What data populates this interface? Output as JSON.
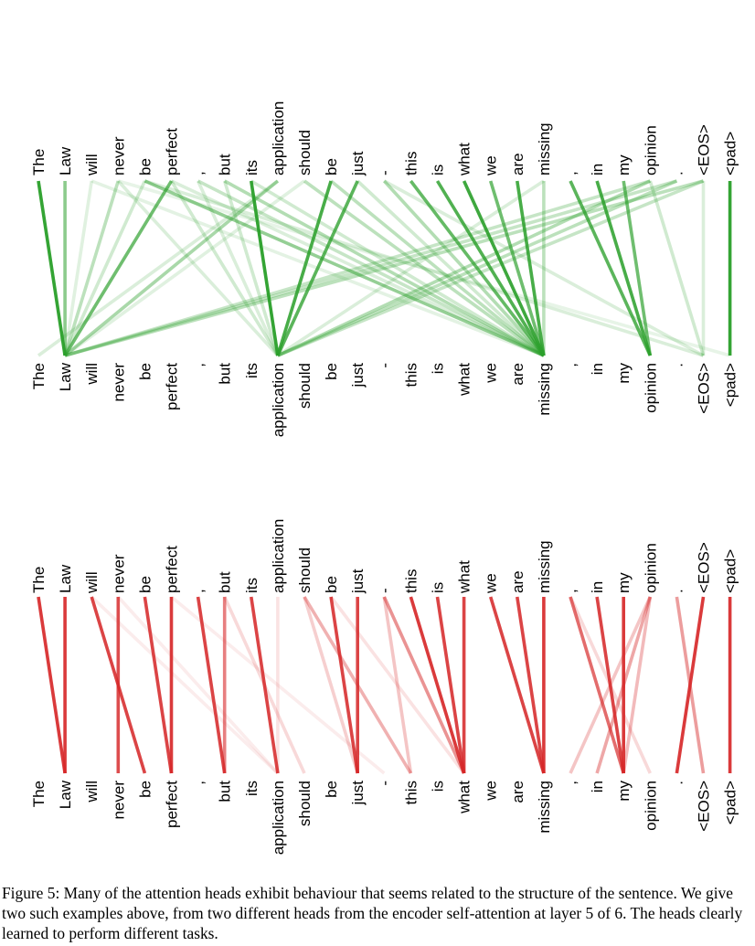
{
  "tokens": [
    "The",
    "Law",
    "will",
    "never",
    "be",
    "perfect",
    ",",
    "but",
    "its",
    "application",
    "should",
    "be",
    "just",
    "-",
    "this",
    "is",
    "what",
    "we",
    "are",
    "missing",
    ",",
    "in",
    "my",
    "opinion",
    ".",
    "<EOS>",
    "<pad>"
  ],
  "heads": [
    {
      "name": "green-head",
      "color": "#2ca02c",
      "edges": [
        [
          0,
          1,
          1.0
        ],
        [
          1,
          1,
          0.55
        ],
        [
          2,
          1,
          0.12
        ],
        [
          2,
          19,
          0.1
        ],
        [
          3,
          1,
          0.3
        ],
        [
          3,
          9,
          0.15
        ],
        [
          3,
          26,
          0.08
        ],
        [
          4,
          19,
          0.5
        ],
        [
          4,
          1,
          0.2
        ],
        [
          4,
          25,
          0.15
        ],
        [
          5,
          1,
          0.7
        ],
        [
          5,
          19,
          0.15
        ],
        [
          5,
          9,
          0.2
        ],
        [
          6,
          19,
          0.25
        ],
        [
          6,
          9,
          0.15
        ],
        [
          7,
          19,
          0.35
        ],
        [
          7,
          9,
          0.2
        ],
        [
          8,
          9,
          1.0
        ],
        [
          8,
          19,
          0.2
        ],
        [
          9,
          1,
          0.4
        ],
        [
          9,
          0,
          0.15
        ],
        [
          10,
          19,
          0.3
        ],
        [
          10,
          1,
          0.12
        ],
        [
          11,
          9,
          0.9
        ],
        [
          11,
          19,
          0.3
        ],
        [
          12,
          9,
          0.8
        ],
        [
          12,
          19,
          0.2
        ],
        [
          13,
          19,
          0.35
        ],
        [
          13,
          25,
          0.15
        ],
        [
          14,
          19,
          0.75
        ],
        [
          15,
          19,
          0.85
        ],
        [
          16,
          19,
          0.95
        ],
        [
          17,
          19,
          0.7
        ],
        [
          18,
          19,
          0.9
        ],
        [
          19,
          19,
          0.3
        ],
        [
          19,
          9,
          0.15
        ],
        [
          20,
          23,
          0.8
        ],
        [
          21,
          23,
          0.9
        ],
        [
          22,
          23,
          0.7
        ],
        [
          23,
          9,
          0.35
        ],
        [
          23,
          1,
          0.25
        ],
        [
          23,
          25,
          0.2
        ],
        [
          24,
          9,
          0.3
        ],
        [
          24,
          1,
          0.25
        ],
        [
          25,
          1,
          0.3
        ],
        [
          25,
          9,
          0.25
        ],
        [
          25,
          25,
          0.15
        ],
        [
          26,
          26,
          1.0
        ]
      ]
    },
    {
      "name": "red-head",
      "color": "#d62728",
      "edges": [
        [
          0,
          1,
          0.95
        ],
        [
          1,
          1,
          0.95
        ],
        [
          2,
          4,
          0.9
        ],
        [
          2,
          9,
          0.05
        ],
        [
          3,
          3,
          0.85
        ],
        [
          3,
          9,
          0.05
        ],
        [
          4,
          5,
          0.9
        ],
        [
          5,
          5,
          0.95
        ],
        [
          6,
          7,
          0.9
        ],
        [
          7,
          7,
          0.6
        ],
        [
          7,
          10,
          0.15
        ],
        [
          8,
          9,
          0.9
        ],
        [
          9,
          9,
          0.1
        ],
        [
          10,
          14,
          0.35
        ],
        [
          10,
          12,
          0.2
        ],
        [
          11,
          12,
          0.9
        ],
        [
          12,
          12,
          0.9
        ],
        [
          13,
          16,
          0.5
        ],
        [
          13,
          14,
          0.25
        ],
        [
          14,
          16,
          0.95
        ],
        [
          15,
          16,
          0.9
        ],
        [
          16,
          16,
          0.9
        ],
        [
          17,
          19,
          0.9
        ],
        [
          18,
          19,
          0.9
        ],
        [
          19,
          19,
          0.95
        ],
        [
          20,
          22,
          0.7
        ],
        [
          20,
          23,
          0.15
        ],
        [
          21,
          22,
          0.9
        ],
        [
          22,
          22,
          0.95
        ],
        [
          23,
          20,
          0.25
        ],
        [
          23,
          21,
          0.4
        ],
        [
          23,
          22,
          0.3
        ],
        [
          24,
          25,
          0.45
        ],
        [
          25,
          24,
          0.95
        ],
        [
          26,
          26,
          0.95
        ],
        [
          5,
          13,
          0.05
        ],
        [
          11,
          16,
          0.1
        ]
      ]
    }
  ],
  "caption": "Figure 5: Many of the attention heads exhibit behaviour that seems related to the structure of the sentence. We give two such examples above, from two different heads from the encoder self-attention at layer 5 of 6. The heads clearly learned to perform different tasks."
}
